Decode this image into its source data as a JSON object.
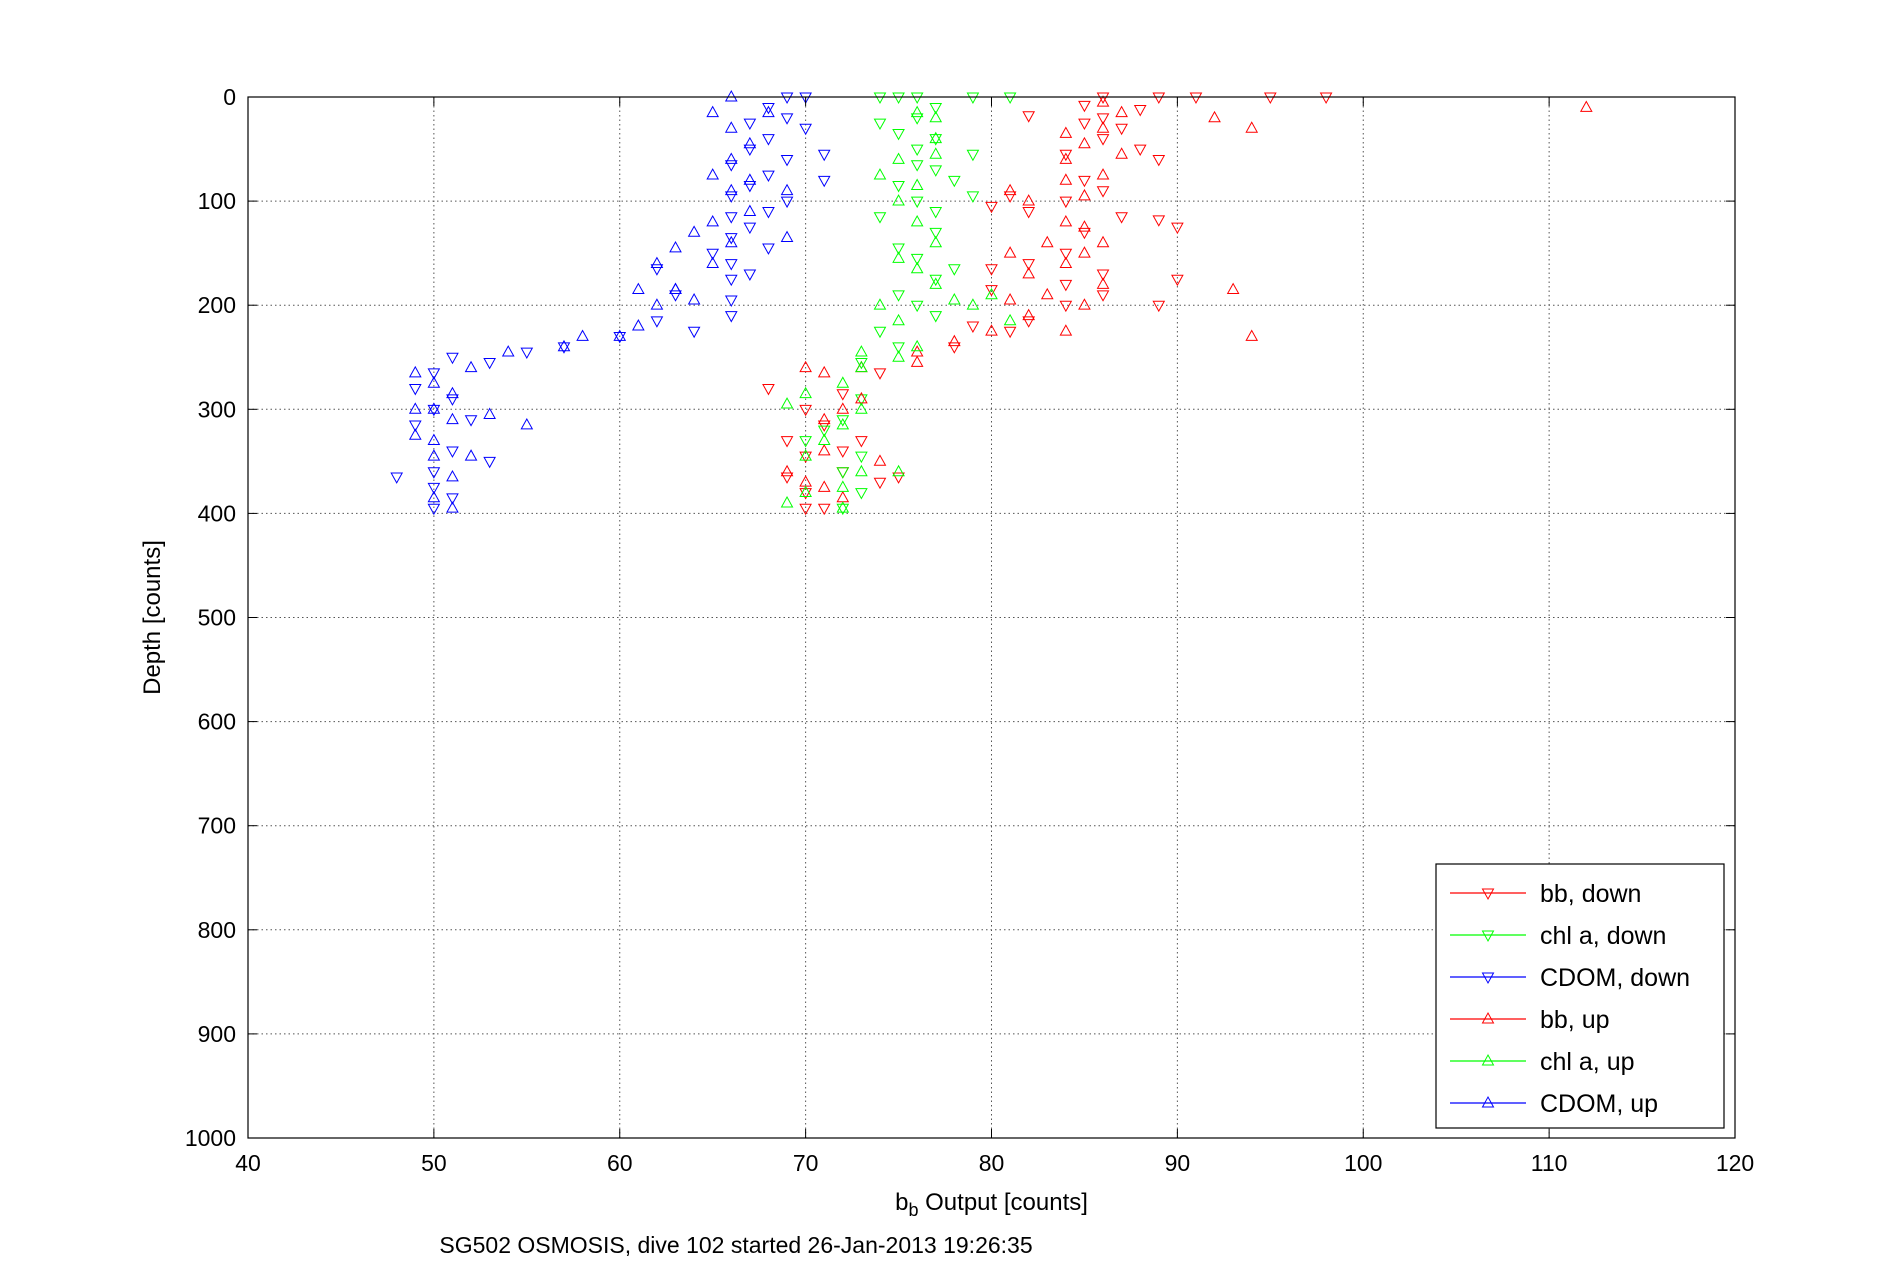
{
  "chart_data": {
    "type": "scatter",
    "title": "",
    "xlabel_main": "b",
    "xlabel_sub": "b",
    "xlabel_rest": " Output [counts]",
    "ylabel": "Depth [counts]",
    "caption": "SG502 OSMOSIS, dive 102 started 26-Jan-2013 19:26:35",
    "xlim": [
      40,
      120
    ],
    "ylim": [
      0,
      1000
    ],
    "y_reversed": true,
    "grid": true,
    "legend_position": "bottom-right",
    "xticks": [
      "40",
      "50",
      "60",
      "70",
      "80",
      "90",
      "100",
      "110",
      "120"
    ],
    "yticks": [
      "0",
      "100",
      "200",
      "300",
      "400",
      "500",
      "600",
      "700",
      "800",
      "900",
      "1000"
    ],
    "series": [
      {
        "name": "bb, down",
        "color": "#ff0000",
        "marker": "triangle-down",
        "points": [
          [
            86,
            0
          ],
          [
            89,
            0
          ],
          [
            91,
            0
          ],
          [
            95,
            0
          ],
          [
            98,
            0
          ],
          [
            85,
            8
          ],
          [
            88,
            12
          ],
          [
            82,
            18
          ],
          [
            86,
            20
          ],
          [
            85,
            25
          ],
          [
            87,
            30
          ],
          [
            86,
            40
          ],
          [
            88,
            50
          ],
          [
            84,
            55
          ],
          [
            89,
            60
          ],
          [
            85,
            80
          ],
          [
            86,
            90
          ],
          [
            84,
            100
          ],
          [
            80,
            105
          ],
          [
            81,
            95
          ],
          [
            82,
            110
          ],
          [
            87,
            115
          ],
          [
            89,
            118
          ],
          [
            90,
            125
          ],
          [
            85,
            130
          ],
          [
            84,
            150
          ],
          [
            82,
            160
          ],
          [
            80,
            165
          ],
          [
            86,
            170
          ],
          [
            90,
            175
          ],
          [
            84,
            180
          ],
          [
            80,
            185
          ],
          [
            86,
            190
          ],
          [
            84,
            200
          ],
          [
            89,
            200
          ],
          [
            82,
            215
          ],
          [
            79,
            220
          ],
          [
            81,
            225
          ],
          [
            78,
            240
          ],
          [
            74,
            265
          ],
          [
            72,
            285
          ],
          [
            68,
            280
          ],
          [
            70,
            300
          ],
          [
            71,
            315
          ],
          [
            69,
            330
          ],
          [
            70,
            345
          ],
          [
            72,
            360
          ],
          [
            69,
            365
          ],
          [
            70,
            380
          ],
          [
            71,
            395
          ],
          [
            72,
            340
          ],
          [
            74,
            370
          ],
          [
            73,
            330
          ],
          [
            75,
            365
          ],
          [
            70,
            395
          ]
        ]
      },
      {
        "name": "chl a, down",
        "color": "#00ff00",
        "marker": "triangle-down",
        "points": [
          [
            74,
            0
          ],
          [
            75,
            0
          ],
          [
            76,
            0
          ],
          [
            79,
            0
          ],
          [
            81,
            0
          ],
          [
            77,
            10
          ],
          [
            76,
            20
          ],
          [
            74,
            25
          ],
          [
            75,
            35
          ],
          [
            77,
            40
          ],
          [
            76,
            50
          ],
          [
            79,
            55
          ],
          [
            76,
            65
          ],
          [
            77,
            70
          ],
          [
            78,
            80
          ],
          [
            75,
            85
          ],
          [
            76,
            100
          ],
          [
            77,
            110
          ],
          [
            79,
            95
          ],
          [
            74,
            115
          ],
          [
            77,
            130
          ],
          [
            75,
            145
          ],
          [
            76,
            155
          ],
          [
            78,
            165
          ],
          [
            77,
            175
          ],
          [
            75,
            190
          ],
          [
            76,
            200
          ],
          [
            77,
            210
          ],
          [
            74,
            225
          ],
          [
            75,
            240
          ],
          [
            73,
            255
          ],
          [
            73,
            290
          ],
          [
            72,
            310
          ],
          [
            71,
            320
          ],
          [
            70,
            330
          ],
          [
            73,
            345
          ],
          [
            72,
            360
          ],
          [
            73,
            380
          ],
          [
            72,
            395
          ]
        ]
      },
      {
        "name": "CDOM, down",
        "color": "#0000ff",
        "marker": "triangle-down",
        "points": [
          [
            69,
            0
          ],
          [
            70,
            0
          ],
          [
            68,
            10
          ],
          [
            69,
            20
          ],
          [
            67,
            25
          ],
          [
            70,
            30
          ],
          [
            68,
            40
          ],
          [
            67,
            50
          ],
          [
            71,
            55
          ],
          [
            69,
            60
          ],
          [
            66,
            65
          ],
          [
            68,
            75
          ],
          [
            71,
            80
          ],
          [
            67,
            85
          ],
          [
            66,
            95
          ],
          [
            69,
            100
          ],
          [
            68,
            110
          ],
          [
            66,
            115
          ],
          [
            67,
            125
          ],
          [
            66,
            135
          ],
          [
            68,
            145
          ],
          [
            65,
            150
          ],
          [
            66,
            160
          ],
          [
            67,
            170
          ],
          [
            66,
            175
          ],
          [
            66,
            195
          ],
          [
            66,
            210
          ],
          [
            64,
            225
          ],
          [
            60,
            230
          ],
          [
            57,
            240
          ],
          [
            55,
            245
          ],
          [
            53,
            255
          ],
          [
            51,
            250
          ],
          [
            50,
            265
          ],
          [
            49,
            280
          ],
          [
            51,
            290
          ],
          [
            50,
            300
          ],
          [
            52,
            310
          ],
          [
            49,
            315
          ],
          [
            48,
            365
          ],
          [
            51,
            340
          ],
          [
            50,
            360
          ],
          [
            53,
            350
          ],
          [
            50,
            375
          ],
          [
            50,
            395
          ],
          [
            51,
            385
          ],
          [
            62,
            215
          ],
          [
            63,
            190
          ],
          [
            62,
            165
          ]
        ]
      },
      {
        "name": "bb, up",
        "color": "#ff0000",
        "marker": "triangle-up",
        "points": [
          [
            112,
            10
          ],
          [
            92,
            20
          ],
          [
            94,
            30
          ],
          [
            86,
            5
          ],
          [
            87,
            15
          ],
          [
            86,
            30
          ],
          [
            84,
            35
          ],
          [
            85,
            45
          ],
          [
            87,
            55
          ],
          [
            84,
            60
          ],
          [
            86,
            75
          ],
          [
            84,
            80
          ],
          [
            85,
            95
          ],
          [
            81,
            90
          ],
          [
            82,
            100
          ],
          [
            84,
            120
          ],
          [
            85,
            125
          ],
          [
            86,
            140
          ],
          [
            85,
            150
          ],
          [
            83,
            140
          ],
          [
            84,
            160
          ],
          [
            81,
            150
          ],
          [
            82,
            170
          ],
          [
            86,
            180
          ],
          [
            83,
            190
          ],
          [
            81,
            195
          ],
          [
            85,
            200
          ],
          [
            82,
            210
          ],
          [
            93,
            185
          ],
          [
            94,
            230
          ],
          [
            84,
            225
          ],
          [
            80,
            225
          ],
          [
            78,
            235
          ],
          [
            76,
            245
          ],
          [
            76,
            255
          ],
          [
            73,
            260
          ],
          [
            71,
            265
          ],
          [
            70,
            260
          ],
          [
            72,
            300
          ],
          [
            73,
            290
          ],
          [
            71,
            310
          ],
          [
            69,
            360
          ],
          [
            71,
            375
          ],
          [
            72,
            385
          ],
          [
            71,
            340
          ],
          [
            74,
            350
          ],
          [
            70,
            370
          ]
        ]
      },
      {
        "name": "chl a, up",
        "color": "#00ff00",
        "marker": "triangle-up",
        "points": [
          [
            76,
            15
          ],
          [
            77,
            20
          ],
          [
            77,
            40
          ],
          [
            77,
            55
          ],
          [
            75,
            60
          ],
          [
            74,
            75
          ],
          [
            76,
            85
          ],
          [
            75,
            100
          ],
          [
            76,
            120
          ],
          [
            77,
            140
          ],
          [
            75,
            155
          ],
          [
            76,
            165
          ],
          [
            77,
            180
          ],
          [
            78,
            195
          ],
          [
            79,
            200
          ],
          [
            74,
            200
          ],
          [
            75,
            215
          ],
          [
            81,
            215
          ],
          [
            80,
            190
          ],
          [
            76,
            240
          ],
          [
            75,
            250
          ],
          [
            73,
            245
          ],
          [
            73,
            260
          ],
          [
            72,
            275
          ],
          [
            70,
            285
          ],
          [
            69,
            295
          ],
          [
            73,
            300
          ],
          [
            72,
            315
          ],
          [
            71,
            330
          ],
          [
            70,
            345
          ],
          [
            73,
            360
          ],
          [
            72,
            375
          ],
          [
            70,
            380
          ],
          [
            69,
            390
          ],
          [
            72,
            395
          ],
          [
            75,
            360
          ]
        ]
      },
      {
        "name": "CDOM, up",
        "color": "#0000ff",
        "marker": "triangle-up",
        "points": [
          [
            66,
            0
          ],
          [
            65,
            15
          ],
          [
            68,
            15
          ],
          [
            66,
            30
          ],
          [
            67,
            45
          ],
          [
            66,
            60
          ],
          [
            65,
            75
          ],
          [
            67,
            80
          ],
          [
            66,
            90
          ],
          [
            69,
            90
          ],
          [
            67,
            110
          ],
          [
            69,
            135
          ],
          [
            65,
            120
          ],
          [
            64,
            130
          ],
          [
            66,
            140
          ],
          [
            63,
            145
          ],
          [
            65,
            160
          ],
          [
            62,
            160
          ],
          [
            63,
            185
          ],
          [
            61,
            185
          ],
          [
            62,
            200
          ],
          [
            61,
            220
          ],
          [
            60,
            230
          ],
          [
            58,
            230
          ],
          [
            57,
            240
          ],
          [
            54,
            245
          ],
          [
            52,
            260
          ],
          [
            49,
            265
          ],
          [
            50,
            275
          ],
          [
            51,
            285
          ],
          [
            50,
            300
          ],
          [
            49,
            300
          ],
          [
            51,
            310
          ],
          [
            50,
            330
          ],
          [
            49,
            325
          ],
          [
            50,
            345
          ],
          [
            51,
            365
          ],
          [
            52,
            345
          ],
          [
            50,
            385
          ],
          [
            51,
            395
          ],
          [
            53,
            305
          ],
          [
            55,
            315
          ],
          [
            63,
            185
          ],
          [
            64,
            195
          ]
        ]
      }
    ]
  }
}
